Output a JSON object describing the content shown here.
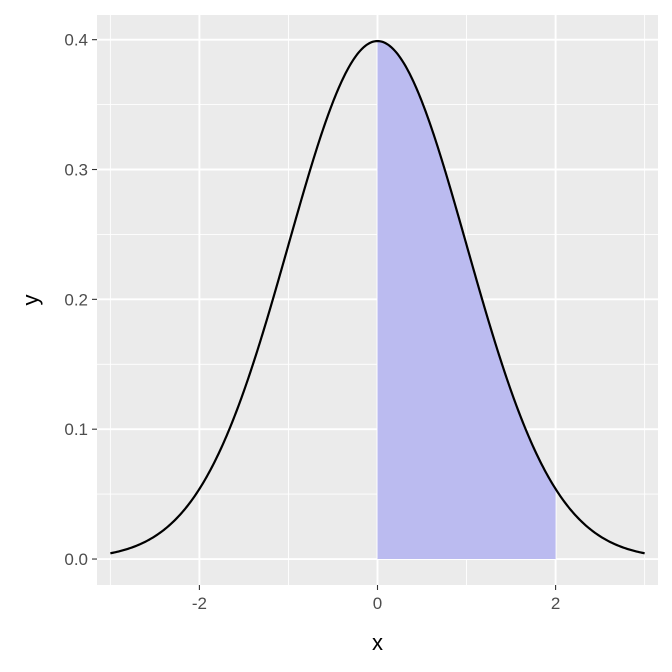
{
  "chart_data": {
    "type": "area",
    "title": "",
    "xlabel": "x",
    "ylabel": "y",
    "xlim": [
      -3.15,
      3.15
    ],
    "ylim": [
      -0.02,
      0.419
    ],
    "x_ticks": [
      -2,
      0,
      2
    ],
    "x_tick_labels": [
      "-2",
      "0",
      "2"
    ],
    "y_ticks": [
      0.0,
      0.1,
      0.2,
      0.3,
      0.4
    ],
    "y_tick_labels": [
      "0.0",
      "0.1",
      "0.2",
      "0.3",
      "0.4"
    ],
    "grid": true,
    "legend": "none",
    "series": [
      {
        "kind": "line",
        "function": "standard normal density",
        "x": [
          -3.0,
          -2.5,
          -2.0,
          -1.5,
          -1.0,
          -0.5,
          0.0,
          0.5,
          1.0,
          1.5,
          2.0,
          2.5,
          3.0
        ],
        "y": [
          0.0044,
          0.0175,
          0.054,
          0.1295,
          0.242,
          0.3521,
          0.3989,
          0.3521,
          0.242,
          0.1295,
          0.054,
          0.0175,
          0.0044
        ],
        "color": "#000000"
      },
      {
        "kind": "shaded_area",
        "x_from": 0,
        "x_to": 2,
        "color": "#b3b3f0"
      }
    ],
    "colors": {
      "panel_background": "#ebebeb",
      "grid": "#ffffff",
      "shade": "#bbbbf0",
      "line": "#000000"
    }
  }
}
